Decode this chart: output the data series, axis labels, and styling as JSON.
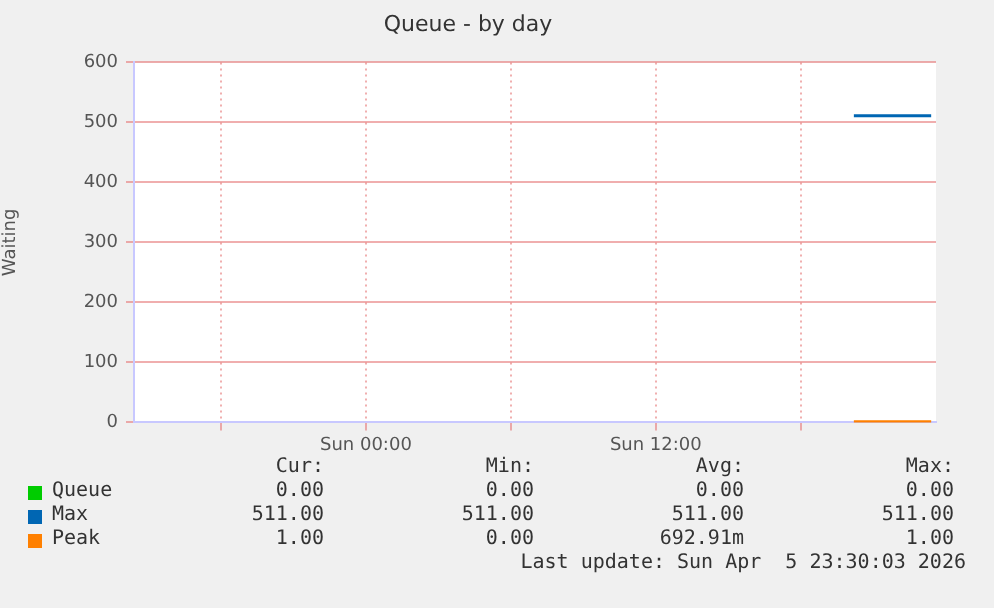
{
  "chart_data": {
    "type": "line",
    "title": "Queue - by day",
    "ylabel": "Waiting",
    "xlim": [
      "2026-04-04T14:24",
      "2026-04-05T23:36"
    ],
    "xticks": [
      {
        "value": "2026-04-04T18:00",
        "label": null
      },
      {
        "value": "2026-04-05T00:00",
        "label": "Sun 00:00"
      },
      {
        "value": "2026-04-05T06:00",
        "label": null
      },
      {
        "value": "2026-04-05T12:00",
        "label": "Sun 12:00"
      },
      {
        "value": "2026-04-05T18:00",
        "label": null
      }
    ],
    "x": [
      "2026-04-05T20:12",
      "2026-04-05T23:24"
    ],
    "ylim": [
      0,
      600
    ],
    "yticks": [
      0,
      100,
      200,
      300,
      400,
      500,
      600
    ],
    "grid": true,
    "legend": "bottom left",
    "marker": "none",
    "series": [
      {
        "name": "Queue",
        "color": "#00cc00",
        "values": [
          null,
          null
        ]
      },
      {
        "name": "Max",
        "color": "#0066b3",
        "values": [
          511,
          511
        ]
      },
      {
        "name": "Peak",
        "color": "#ff8000",
        "values": [
          1,
          1
        ]
      }
    ],
    "annotations": [
      "Cur:",
      "Min:",
      "Avg:",
      "Max:",
      "0.00",
      "0.00",
      "0.00",
      "0.00",
      "511.00",
      "511.00",
      "511.00",
      "511.00",
      "1.00",
      "0.00",
      "692.91m",
      "1.00",
      "Last update: Sun Apr  5 23:30:03 2026"
    ]
  }
}
